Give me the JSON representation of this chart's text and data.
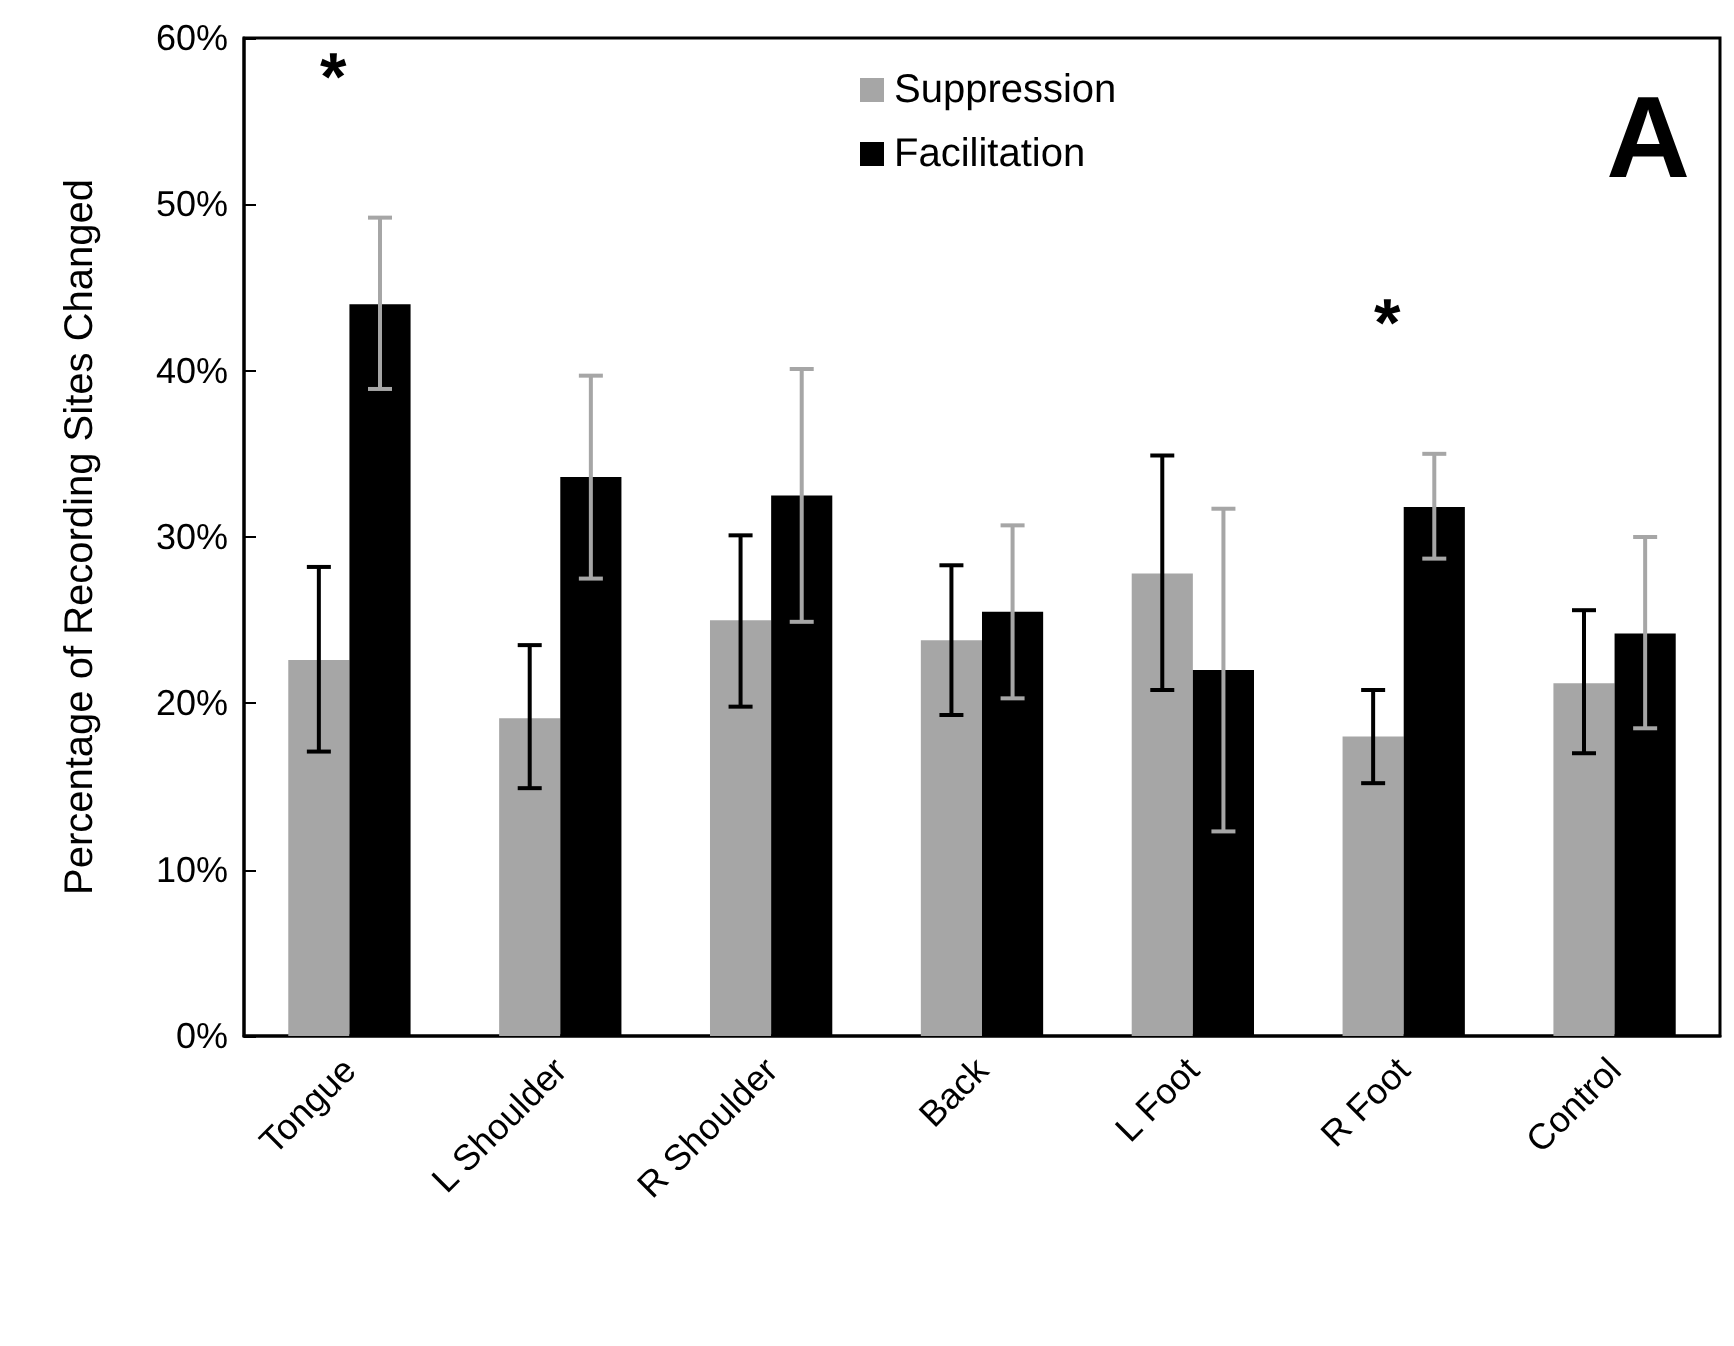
{
  "chart_data": {
    "type": "bar",
    "ylabel": "Percentage of Recording Sites Changed",
    "categories": [
      "Tongue",
      "L Shoulder",
      "R Shoulder",
      "Back",
      "L Foot",
      "R Foot",
      "Control"
    ],
    "series": [
      {
        "name": "Suppression",
        "color": "#a6a6a6",
        "values": [
          22.6,
          19.1,
          25.0,
          23.8,
          27.8,
          18.0,
          21.2
        ],
        "errors": [
          [
            17.1,
            28.2
          ],
          [
            14.9,
            23.5
          ],
          [
            19.8,
            30.1
          ],
          [
            19.3,
            28.3
          ],
          [
            20.8,
            34.9
          ],
          [
            15.2,
            20.8
          ],
          [
            17.0,
            25.6
          ]
        ]
      },
      {
        "name": "Facilitation",
        "color": "#000000",
        "values": [
          44.0,
          33.6,
          32.5,
          25.5,
          22.0,
          31.8,
          24.2
        ],
        "errors": [
          [
            38.9,
            49.2
          ],
          [
            27.5,
            39.7
          ],
          [
            24.9,
            40.1
          ],
          [
            20.3,
            30.7
          ],
          [
            12.3,
            31.7
          ],
          [
            28.7,
            35.0
          ],
          [
            18.5,
            30.0
          ]
        ]
      }
    ],
    "ylim": [
      0,
      60
    ],
    "yticks": [
      {
        "value": 0,
        "label": "0%"
      },
      {
        "value": 10,
        "label": "10%"
      },
      {
        "value": 20,
        "label": "20%"
      },
      {
        "value": 30,
        "label": "30%"
      },
      {
        "value": 40,
        "label": "40%"
      },
      {
        "value": 50,
        "label": "50%"
      },
      {
        "value": 60,
        "label": "60%"
      }
    ],
    "annotations": [
      "*",
      "*",
      "A"
    ],
    "legend": "top",
    "grid": false
  }
}
